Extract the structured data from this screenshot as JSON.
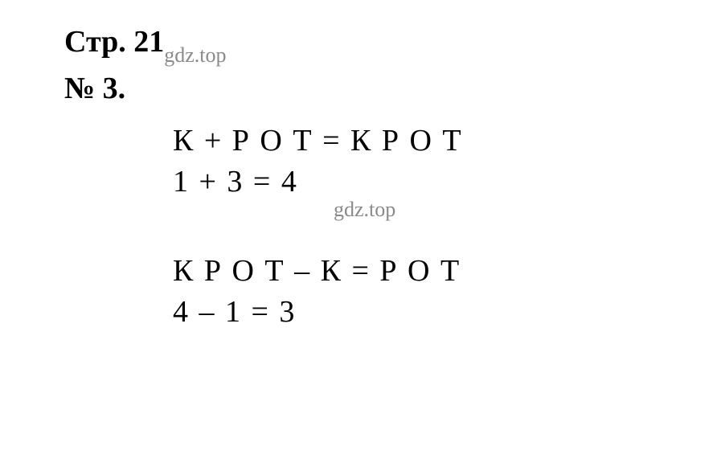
{
  "header": {
    "prefix": "Стр. 21",
    "subscript": "gdz.top"
  },
  "problem_number": "№ 3.",
  "equations": {
    "block1": {
      "line1_letters": "К + Р О Т = К Р О Т",
      "line2_numbers": "1 + 3 = 4"
    },
    "watermark": "gdz.top",
    "block2": {
      "line1_letters": "К Р О Т – К = Р О Т",
      "line2_numbers": "4 – 1 = 3"
    }
  },
  "colors": {
    "text": "#000000",
    "watermark": "#8a8a8a",
    "background": "#ffffff"
  },
  "typography": {
    "main_fontsize": 38,
    "watermark_fontsize": 26,
    "font_family": "Times New Roman"
  }
}
